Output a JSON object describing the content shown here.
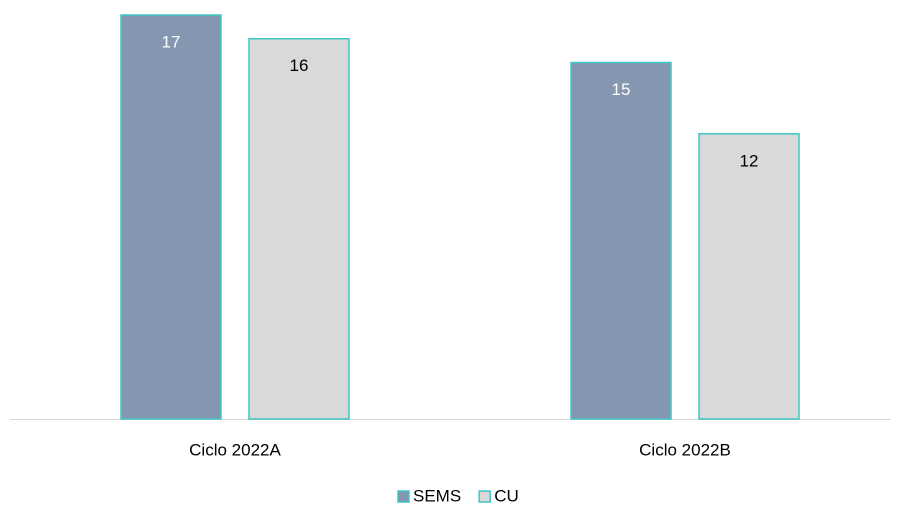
{
  "chart_data": {
    "type": "bar",
    "categories": [
      "Ciclo 2022A",
      "Ciclo 2022B"
    ],
    "series": [
      {
        "name": "SEMS",
        "color": "#8496b0",
        "values": [
          17,
          15
        ]
      },
      {
        "name": "CU",
        "color": "#d9d9d9",
        "values": [
          16,
          12
        ]
      }
    ],
    "edgecolor": "#3fc6c6",
    "ylim": [
      0,
      17
    ],
    "legend": "bottom"
  }
}
